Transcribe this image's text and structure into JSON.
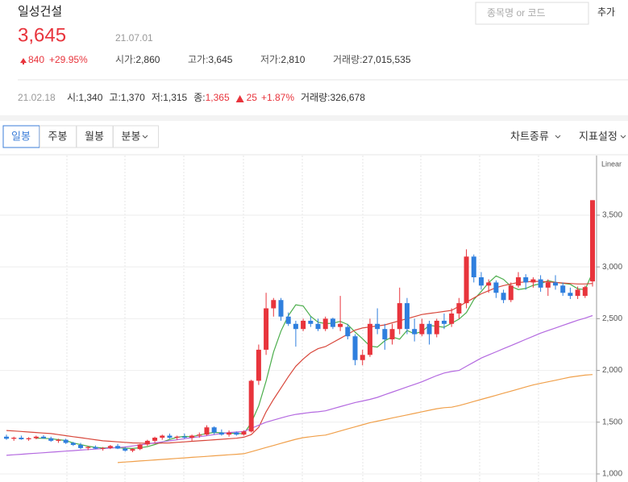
{
  "header": {
    "name": "일성건설",
    "price": "3,645",
    "date": "21.07.01",
    "change": "840",
    "change_pct": "+29.95%",
    "stats": [
      {
        "label": "시가:",
        "value": "2,860"
      },
      {
        "label": "고가:",
        "value": "3,645"
      },
      {
        "label": "저가:",
        "value": "2,810"
      },
      {
        "label": "거래량:",
        "value": "27,015,535"
      }
    ]
  },
  "search": {
    "placeholder": "종목명 or 코드",
    "button": "추가"
  },
  "history": {
    "date": "21.02.18",
    "items": [
      {
        "label": "시:",
        "value": "1,340"
      },
      {
        "label": "고:",
        "value": "1,370"
      },
      {
        "label": "저:",
        "value": "1,315"
      },
      {
        "label": "종:",
        "value": "1,365"
      }
    ],
    "change": "25",
    "change_pct": "+1.87%",
    "volume": {
      "label": "거래량:",
      "value": "326,678"
    }
  },
  "tabs": [
    {
      "label": "일봉",
      "selected": true
    },
    {
      "label": "주봉",
      "selected": false
    },
    {
      "label": "월봉",
      "selected": false
    },
    {
      "label": "분봉",
      "selected": false
    }
  ],
  "menus": [
    "차트종류",
    "지표설정"
  ],
  "chart_data": {
    "type": "candlestick",
    "scale_label": "Linear",
    "up_color": "#e8343c",
    "down_color": "#2f7fde",
    "ylim": [
      922,
      4037
    ],
    "yticks": [
      {
        "value": 1000,
        "label": "1,000"
      },
      {
        "value": 1500,
        "label": "1,500"
      },
      {
        "value": 2000,
        "label": "2,000"
      },
      {
        "value": 2500,
        "label": "2,500"
      },
      {
        "value": 3000,
        "label": "3,000"
      },
      {
        "value": 3500,
        "label": "3,500"
      }
    ],
    "open": [
      1360,
      1340,
      1350,
      1335,
      1345,
      1360,
      1345,
      1320,
      1330,
      1300,
      1280,
      1250,
      1260,
      1245,
      1250,
      1270,
      1245,
      1225,
      1240,
      1285,
      1320,
      1350,
      1370,
      1350,
      1360,
      1350,
      1370,
      1380,
      1450,
      1400,
      1380,
      1400,
      1380,
      1410,
      1900,
      2200,
      2600,
      2680,
      2520,
      2450,
      2400,
      2480,
      2450,
      2400,
      2500,
      2420,
      2420,
      2330,
      2100,
      2150,
      2450,
      2400,
      2300,
      2400,
      2650,
      2400,
      2350,
      2450,
      2350,
      2480,
      2450,
      2550,
      2650,
      3100,
      2900,
      2820,
      2850,
      2750,
      2680,
      2820,
      2900,
      2850,
      2880,
      2800,
      2850,
      2820,
      2750,
      2720,
      2720,
      2860
    ],
    "high": [
      1380,
      1360,
      1370,
      1355,
      1370,
      1375,
      1360,
      1340,
      1340,
      1310,
      1300,
      1270,
      1275,
      1260,
      1280,
      1290,
      1260,
      1250,
      1290,
      1330,
      1360,
      1380,
      1390,
      1370,
      1390,
      1380,
      1400,
      1470,
      1460,
      1430,
      1420,
      1410,
      1420,
      1910,
      2250,
      2750,
      2700,
      2700,
      2560,
      2480,
      2500,
      2520,
      2500,
      2520,
      2510,
      2720,
      2450,
      2350,
      2200,
      2500,
      2600,
      2450,
      2450,
      2800,
      2700,
      2500,
      2500,
      2480,
      2500,
      2550,
      2600,
      2700,
      3170,
      3120,
      2950,
      2880,
      2870,
      2780,
      2850,
      2950,
      2930,
      2900,
      2920,
      2880,
      2920,
      2850,
      2800,
      2810,
      2820,
      3645
    ],
    "low": [
      1330,
      1320,
      1330,
      1320,
      1335,
      1340,
      1310,
      1300,
      1290,
      1270,
      1240,
      1230,
      1240,
      1225,
      1240,
      1240,
      1215,
      1210,
      1230,
      1270,
      1300,
      1330,
      1340,
      1330,
      1340,
      1320,
      1350,
      1370,
      1380,
      1370,
      1360,
      1370,
      1370,
      1400,
      1860,
      2150,
      2520,
      2480,
      2430,
      2230,
      2380,
      2420,
      2380,
      2380,
      2400,
      2380,
      2300,
      2050,
      2050,
      2130,
      2350,
      2200,
      2250,
      2350,
      2350,
      2280,
      2330,
      2250,
      2320,
      2400,
      2420,
      2500,
      2600,
      2850,
      2780,
      2750,
      2700,
      2650,
      2660,
      2800,
      2780,
      2800,
      2760,
      2720,
      2780,
      2720,
      2690,
      2690,
      2700,
      2810
    ],
    "close": [
      1340,
      1350,
      1335,
      1345,
      1360,
      1345,
      1320,
      1330,
      1300,
      1280,
      1250,
      1260,
      1245,
      1250,
      1270,
      1245,
      1225,
      1240,
      1285,
      1320,
      1350,
      1370,
      1350,
      1360,
      1350,
      1370,
      1380,
      1450,
      1400,
      1380,
      1400,
      1380,
      1410,
      1900,
      2200,
      2600,
      2680,
      2520,
      2450,
      2400,
      2480,
      2450,
      2400,
      2500,
      2420,
      2450,
      2330,
      2100,
      2150,
      2450,
      2400,
      2300,
      2400,
      2650,
      2400,
      2350,
      2450,
      2350,
      2480,
      2450,
      2550,
      2650,
      3100,
      2900,
      2820,
      2850,
      2750,
      2680,
      2820,
      2900,
      2850,
      2880,
      2800,
      2850,
      2820,
      2750,
      2720,
      2780,
      2805,
      3645
    ],
    "moving_averages": [
      {
        "color": "#4cae4c",
        "values": [
          null,
          null,
          null,
          null,
          1346,
          1344,
          1340,
          1331,
          1323,
          1299,
          1283,
          1268,
          1257,
          1251,
          1253,
          1254,
          1248,
          1246,
          1253,
          1263,
          1284,
          1308,
          1333,
          1354,
          1363,
          1360,
          1376,
          1390,
          1401,
          1398,
          1392,
          1392,
          1388,
          1495,
          1658,
          1898,
          2177,
          2380,
          2529,
          2634,
          2622,
          2524,
          2466,
          2452,
          2456,
          2474,
          2444,
          2370,
          2306,
          2235,
          2226,
          2286,
          2324,
          2302,
          2386,
          2354,
          2376,
          2435,
          2426,
          2417,
          2456,
          2496,
          2560,
          2685,
          2763,
          2848,
          2913,
          2880,
          2811,
          2782,
          2792,
          2822,
          2838,
          2867,
          2852,
          2842,
          2832,
          2789,
          2781,
          2946
        ]
      },
      {
        "color": "#d8473b",
        "values": [
          1420,
          1415,
          1410,
          1405,
          1400,
          1395,
          1390,
          1380,
          1370,
          1360,
          1350,
          1340,
          1330,
          1320,
          1315,
          1310,
          1305,
          1300,
          1298,
          1296,
          1296,
          1298,
          1300,
          1305,
          1310,
          1315,
          1320,
          1325,
          1330,
          1335,
          1340,
          1345,
          1355,
          1380,
          1450,
          1600,
          1720,
          1830,
          1940,
          2040,
          2110,
          2170,
          2210,
          2230,
          2270,
          2310,
          2350,
          2390,
          2410,
          2420,
          2430,
          2440,
          2460,
          2480,
          2500,
          2520,
          2540,
          2550,
          2560,
          2570,
          2580,
          2620,
          2660,
          2700,
          2740,
          2770,
          2800,
          2820,
          2835,
          2850,
          2855,
          2860,
          2860,
          2855,
          2850,
          2845,
          2840,
          2835,
          2835,
          2840
        ]
      },
      {
        "color": "#b46ae0",
        "values": [
          1180,
          1185,
          1190,
          1195,
          1200,
          1205,
          1210,
          1215,
          1220,
          1225,
          1230,
          1235,
          1240,
          1245,
          1250,
          1255,
          1260,
          1270,
          1280,
          1290,
          1300,
          1310,
          1320,
          1330,
          1340,
          1350,
          1360,
          1370,
          1380,
          1390,
          1400,
          1405,
          1410,
          1440,
          1470,
          1500,
          1520,
          1540,
          1560,
          1575,
          1585,
          1595,
          1600,
          1610,
          1630,
          1650,
          1670,
          1690,
          1705,
          1720,
          1740,
          1765,
          1790,
          1815,
          1840,
          1865,
          1890,
          1920,
          1950,
          1975,
          1990,
          2000,
          2040,
          2080,
          2120,
          2150,
          2180,
          2210,
          2240,
          2270,
          2300,
          2330,
          2360,
          2385,
          2410,
          2435,
          2460,
          2485,
          2505,
          2530
        ]
      },
      {
        "color": "#f0a04b",
        "values": [
          null,
          null,
          null,
          null,
          null,
          null,
          null,
          null,
          null,
          null,
          null,
          null,
          null,
          null,
          null,
          1110,
          1115,
          1120,
          1125,
          1130,
          1135,
          1140,
          1145,
          1150,
          1155,
          1160,
          1165,
          1170,
          1175,
          1180,
          1185,
          1190,
          1195,
          1215,
          1235,
          1255,
          1275,
          1295,
          1315,
          1335,
          1350,
          1360,
          1368,
          1375,
          1395,
          1415,
          1435,
          1455,
          1475,
          1495,
          1510,
          1525,
          1540,
          1555,
          1570,
          1585,
          1600,
          1615,
          1630,
          1640,
          1645,
          1660,
          1680,
          1700,
          1720,
          1740,
          1760,
          1780,
          1800,
          1820,
          1840,
          1860,
          1875,
          1890,
          1905,
          1920,
          1935,
          1945,
          1955,
          1960
        ]
      }
    ]
  }
}
